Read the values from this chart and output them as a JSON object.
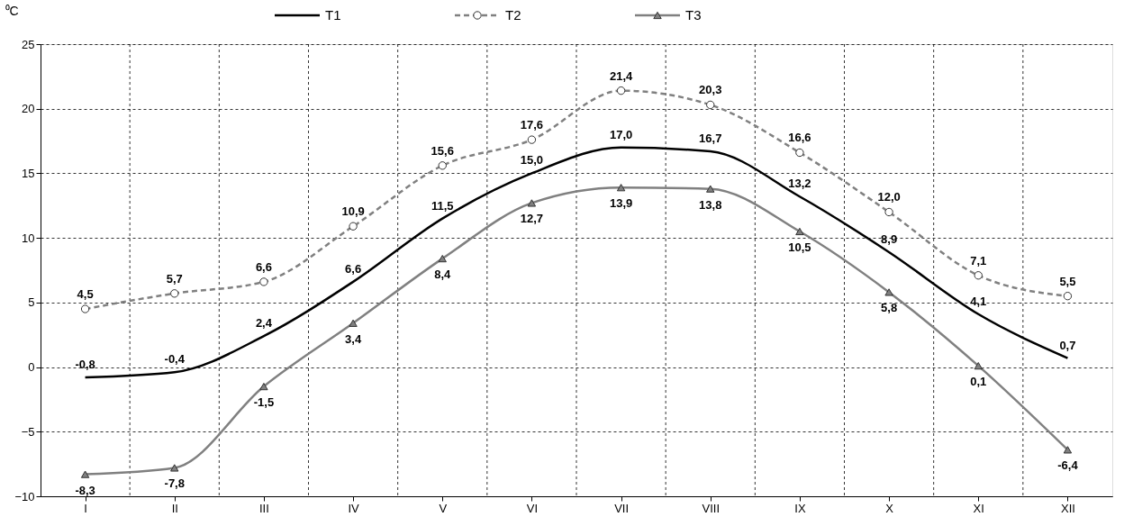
{
  "chart_data": {
    "type": "line",
    "ylabel": "⁰C",
    "categories": [
      "I",
      "II",
      "III",
      "IV",
      "V",
      "VI",
      "VII",
      "VIII",
      "IX",
      "X",
      "XI",
      "XII"
    ],
    "series": [
      {
        "name": "T1",
        "color": "#000000",
        "marker": "none",
        "line_style": "solid",
        "values": [
          -0.8,
          -0.4,
          2.4,
          6.6,
          11.5,
          15.0,
          17.0,
          16.7,
          13.2,
          8.9,
          4.1,
          0.7
        ],
        "value_labels": [
          "-0,8",
          "-0,4",
          "2,4",
          "6,6",
          "11,5",
          "15,0",
          "17,0",
          "16,7",
          "13,2",
          "8,9",
          "4,1",
          "0,7"
        ]
      },
      {
        "name": "T2",
        "color": "#808080",
        "marker": "circle",
        "line_style": "dashed",
        "values": [
          4.5,
          5.7,
          6.6,
          10.9,
          15.6,
          17.6,
          21.4,
          20.3,
          16.6,
          12.0,
          7.1,
          5.5
        ],
        "value_labels": [
          "4,5",
          "5,7",
          "6,6",
          "10,9",
          "15,6",
          "17,6",
          "21,4",
          "20,3",
          "16,6",
          "12,0",
          "7,1",
          "5,5"
        ]
      },
      {
        "name": "T3",
        "color": "#808080",
        "marker": "triangle",
        "line_style": "solid",
        "values": [
          -8.3,
          -7.8,
          -1.5,
          3.4,
          8.4,
          12.7,
          13.9,
          13.8,
          10.5,
          5.8,
          0.1,
          -6.4
        ],
        "value_labels": [
          "-8,3",
          "-7,8",
          "-1,5",
          "3,4",
          "8,4",
          "12,7",
          "13,9",
          "13,8",
          "10,5",
          "5,8",
          "0,1",
          "-6,4"
        ]
      }
    ],
    "ylim": [
      -10,
      25
    ],
    "yticks": [
      -10,
      -5,
      0,
      5,
      10,
      15,
      20,
      25
    ],
    "grid": true,
    "legend": "top"
  }
}
